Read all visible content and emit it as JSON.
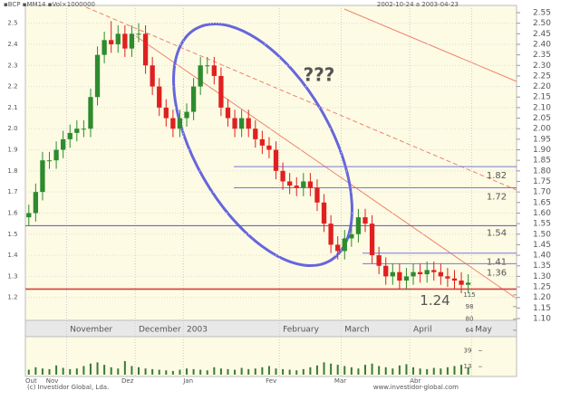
{
  "header": {
    "left": "▪BCP ▪MM14 ▪Vol×1000000",
    "right": "2002-10-24 a 2003-04-23"
  },
  "footer": {
    "left": "(c) Investidor Global, Lda.",
    "right": "www.investidor-global.com"
  },
  "chart_data": {
    "type": "candlestick",
    "annotation": "???",
    "categories": [
      null,
      null,
      null,
      null,
      null,
      null,
      "November",
      null,
      null,
      null,
      null,
      null,
      null,
      null,
      null,
      null,
      "December",
      null,
      null,
      null,
      null,
      null,
      null,
      "2003",
      null,
      null,
      null,
      null,
      null,
      null,
      null,
      null,
      null,
      null,
      null,
      null,
      null,
      "February",
      null,
      null,
      null,
      null,
      null,
      null,
      null,
      null,
      "March",
      null,
      null,
      null,
      null,
      null,
      null,
      null,
      null,
      null,
      "April",
      null,
      null,
      null,
      null,
      null,
      null,
      null,
      null,
      "May"
    ],
    "lower_categories": [
      "Out",
      null,
      null,
      "Nov",
      null,
      null,
      null,
      null,
      null,
      null,
      null,
      null,
      null,
      null,
      "Dez",
      null,
      null,
      null,
      null,
      null,
      null,
      null,
      null,
      "Jan",
      null,
      null,
      null,
      null,
      null,
      null,
      null,
      null,
      null,
      null,
      null,
      "Fev",
      null,
      null,
      null,
      null,
      null,
      null,
      null,
      null,
      null,
      "Mar",
      null,
      null,
      null,
      null,
      null,
      null,
      null,
      null,
      null,
      null,
      "Abr",
      null,
      null,
      null,
      null,
      null,
      null,
      null,
      null,
      null
    ],
    "open": [
      1.58,
      1.6,
      1.7,
      1.85,
      1.85,
      1.9,
      1.95,
      1.98,
      2.0,
      2.0,
      2.15,
      2.35,
      2.42,
      2.4,
      2.45,
      2.38,
      2.45,
      2.45,
      2.3,
      2.2,
      2.1,
      2.05,
      2.0,
      2.05,
      2.08,
      2.2,
      2.3,
      2.3,
      2.25,
      2.1,
      2.05,
      2.0,
      2.05,
      2.0,
      1.95,
      1.92,
      1.9,
      1.8,
      1.75,
      1.73,
      1.72,
      1.75,
      1.72,
      1.65,
      1.55,
      1.45,
      1.42,
      1.48,
      1.5,
      1.58,
      1.55,
      1.4,
      1.35,
      1.3,
      1.32,
      1.28,
      1.3,
      1.32,
      1.31,
      1.33,
      1.32,
      1.3,
      1.29,
      1.28,
      1.26,
      null
    ],
    "high": [
      1.64,
      1.74,
      1.89,
      1.89,
      1.94,
      1.99,
      2.02,
      2.04,
      2.04,
      2.19,
      2.39,
      2.46,
      2.51,
      2.49,
      2.49,
      2.49,
      2.5,
      2.49,
      2.34,
      2.24,
      2.14,
      2.09,
      2.09,
      2.12,
      2.24,
      2.34,
      2.34,
      2.34,
      2.29,
      2.14,
      2.09,
      2.09,
      2.09,
      2.04,
      1.99,
      1.96,
      1.94,
      1.84,
      1.79,
      1.77,
      1.79,
      1.79,
      1.76,
      1.69,
      1.59,
      1.49,
      1.52,
      1.54,
      1.62,
      1.62,
      1.59,
      1.44,
      1.39,
      1.36,
      1.36,
      1.34,
      1.36,
      1.36,
      1.37,
      1.37,
      1.36,
      1.34,
      1.33,
      1.32,
      1.31,
      null
    ],
    "low": [
      1.54,
      1.56,
      1.66,
      1.81,
      1.81,
      1.86,
      1.91,
      1.94,
      1.96,
      1.96,
      2.11,
      2.31,
      2.36,
      2.36,
      2.34,
      2.34,
      2.41,
      2.26,
      2.16,
      2.06,
      2.01,
      1.96,
      1.96,
      2.01,
      2.04,
      2.16,
      2.26,
      2.21,
      2.06,
      2.01,
      1.96,
      1.96,
      1.96,
      1.91,
      1.88,
      1.86,
      1.76,
      1.71,
      1.69,
      1.68,
      1.68,
      1.68,
      1.61,
      1.51,
      1.41,
      1.38,
      1.38,
      1.44,
      1.46,
      1.51,
      1.36,
      1.31,
      1.26,
      1.26,
      1.24,
      1.24,
      1.26,
      1.27,
      1.27,
      1.28,
      1.26,
      1.25,
      1.24,
      1.22,
      1.22,
      null
    ],
    "close": [
      1.6,
      1.7,
      1.85,
      1.85,
      1.9,
      1.95,
      1.98,
      2.0,
      2.0,
      2.15,
      2.35,
      2.42,
      2.4,
      2.45,
      2.38,
      2.45,
      2.45,
      2.3,
      2.2,
      2.1,
      2.05,
      2.0,
      2.05,
      2.08,
      2.2,
      2.3,
      2.3,
      2.25,
      2.1,
      2.05,
      2.0,
      2.05,
      2.0,
      1.95,
      1.92,
      1.9,
      1.8,
      1.75,
      1.73,
      1.72,
      1.75,
      1.72,
      1.65,
      1.55,
      1.45,
      1.42,
      1.48,
      1.5,
      1.58,
      1.55,
      1.4,
      1.35,
      1.3,
      1.32,
      1.28,
      1.3,
      1.32,
      1.31,
      1.33,
      1.32,
      1.3,
      1.29,
      1.28,
      1.26,
      1.27,
      null
    ],
    "up_color": "#2e8b2e",
    "down_color": "#e02020",
    "ylim": [
      1.1,
      2.55
    ],
    "yticks": [
      2.5,
      2.4,
      2.3,
      2.2,
      2.1,
      {
        "value": 2,
        "label": "2.0"
      },
      1.9,
      1.8,
      1.7,
      1.6,
      1.5,
      1.4,
      1.3,
      1.2
    ],
    "y2lim": [
      1.1,
      2.55
    ],
    "y2ticks": [
      {
        "value": 2.55,
        "label": "2.55"
      },
      {
        "value": 2.5,
        "label": "2.50"
      },
      {
        "value": 2.45,
        "label": "2.45"
      },
      {
        "value": 2.4,
        "label": "2.40"
      },
      {
        "value": 2.35,
        "label": "2.35"
      },
      {
        "value": 2.3,
        "label": "2.30"
      },
      {
        "value": 2.25,
        "label": "2.25"
      },
      {
        "value": 2.2,
        "label": "2.20"
      },
      {
        "value": 2.15,
        "label": "2.15"
      },
      {
        "value": 2.1,
        "label": "2.10"
      },
      {
        "value": 2.05,
        "label": "2.05"
      },
      {
        "value": 2,
        "label": "2.00"
      },
      {
        "value": 1.95,
        "label": "1.95"
      },
      {
        "value": 1.9,
        "label": "1.90"
      },
      {
        "value": 1.85,
        "label": "1.85"
      },
      {
        "value": 1.8,
        "label": "1.80"
      },
      {
        "value": 1.75,
        "label": "1.75"
      },
      {
        "value": 1.7,
        "label": "1.70"
      },
      {
        "value": 1.65,
        "label": "1.65"
      },
      {
        "value": 1.6,
        "label": "1.60"
      },
      {
        "value": 1.55,
        "label": "1.55"
      },
      {
        "value": 1.5,
        "label": "1.50"
      },
      {
        "value": 1.45,
        "label": "1.45"
      },
      {
        "value": 1.4,
        "label": "1.40"
      },
      {
        "value": 1.35,
        "label": "1.35"
      },
      {
        "value": 1.3,
        "label": "1.30"
      },
      {
        "value": 1.25,
        "label": "1.25"
      },
      {
        "value": 1.2,
        "label": "1.20"
      },
      {
        "value": 1.15,
        "label": "1.15"
      },
      {
        "value": 1.1,
        "label": "1.10"
      }
    ],
    "grid": true,
    "levels": {
      "values": [
        1.82,
        1.72,
        1.54,
        1.41,
        1.36,
        1.24
      ],
      "colors": [
        "#7777dd",
        "#7777dd",
        "#5555cc",
        "#7777dd",
        "#7777dd",
        "#e04040"
      ]
    },
    "indicator": {
      "ylim": [
        60,
        120
      ],
      "yticks": [
        115,
        98,
        80,
        64
      ]
    },
    "volume": {
      "color": "#3a7a3a",
      "ylim": [
        0,
        50
      ],
      "yticks": [
        39,
        13
      ],
      "values": [
        8,
        12,
        10,
        9,
        15,
        11,
        9,
        10,
        14,
        18,
        20,
        16,
        12,
        10,
        22,
        14,
        12,
        10,
        9,
        8,
        7,
        6,
        8,
        10,
        9,
        8,
        7,
        12,
        10,
        9,
        8,
        11,
        9,
        10,
        12,
        14,
        10,
        9,
        8,
        7,
        9,
        12,
        15,
        20,
        18,
        16,
        14,
        12,
        10,
        16,
        18,
        14,
        12,
        10,
        15,
        17,
        12,
        10,
        9,
        11,
        10,
        12,
        14,
        16,
        12,
        null
      ]
    }
  }
}
